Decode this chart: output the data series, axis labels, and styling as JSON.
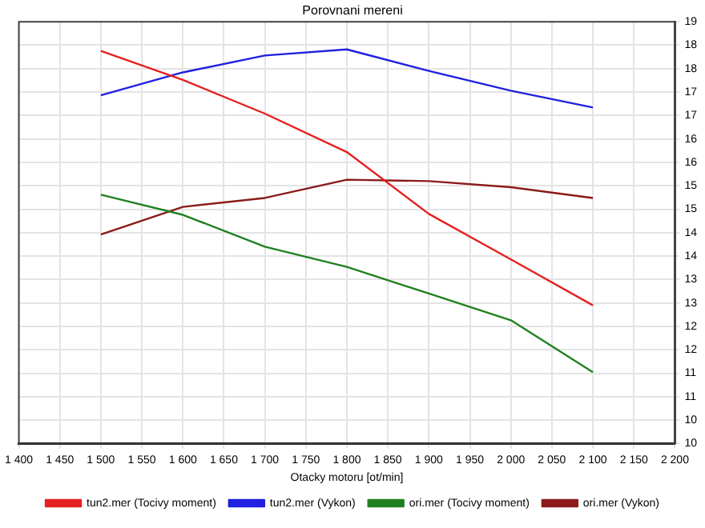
{
  "chart_data": {
    "type": "line",
    "title": "Porovnani mereni",
    "xlabel": "Otacky motoru [ot/min]",
    "x": [
      1500,
      1600,
      1700,
      1800,
      1900,
      2000,
      2100
    ],
    "series": [
      {
        "name": "tun2.mer (Tocivy moment)",
        "color": "#e52020",
        "values": [
          18.38,
          17.76,
          17.04,
          16.22,
          14.9,
          13.93,
          12.95
        ]
      },
      {
        "name": "tun2.mer (Vykon)",
        "color": "#2020e0",
        "values": [
          17.43,
          17.92,
          18.28,
          18.41,
          17.95,
          17.53,
          17.17
        ]
      },
      {
        "name": "ori.mer (Tocivy moment)",
        "color": "#208020",
        "values": [
          15.31,
          14.88,
          14.2,
          13.77,
          13.2,
          12.63,
          11.52
        ]
      },
      {
        "name": "ori.mer (Vykon)",
        "color": "#8b1a1a",
        "values": [
          14.46,
          15.05,
          15.24,
          15.63,
          15.6,
          15.47,
          15.24
        ]
      }
    ],
    "xlim": [
      1400,
      2200
    ],
    "xticks": [
      {
        "value": 1400,
        "label": "1 400"
      },
      {
        "value": 1450,
        "label": "1 450"
      },
      {
        "value": 1500,
        "label": "1 500"
      },
      {
        "value": 1550,
        "label": "1 550"
      },
      {
        "value": 1600,
        "label": "1 600"
      },
      {
        "value": 1650,
        "label": "1 650"
      },
      {
        "value": 1700,
        "label": "1 700"
      },
      {
        "value": 1750,
        "label": "1 750"
      },
      {
        "value": 1800,
        "label": "1 800"
      },
      {
        "value": 1850,
        "label": "1 850"
      },
      {
        "value": 1900,
        "label": "1 900"
      },
      {
        "value": 1950,
        "label": "1 950"
      },
      {
        "value": 2000,
        "label": "2 000"
      },
      {
        "value": 2050,
        "label": "2 050"
      },
      {
        "value": 2100,
        "label": "2 100"
      },
      {
        "value": 2150,
        "label": "2 150"
      },
      {
        "value": 2200,
        "label": "2 200"
      }
    ],
    "ylim": [
      10,
      19
    ],
    "yticks": [
      19,
      {
        "value": 18.5,
        "label": "18"
      },
      18,
      {
        "value": 17.5,
        "label": "17"
      },
      17,
      {
        "value": 16.5,
        "label": "16"
      },
      16,
      {
        "value": 15.5,
        "label": "15"
      },
      15,
      {
        "value": 14.5,
        "label": "14"
      },
      14,
      {
        "value": 13.5,
        "label": "13"
      },
      13,
      {
        "value": 12.5,
        "label": "12"
      },
      12,
      {
        "value": 11.5,
        "label": "11"
      },
      11,
      {
        "value": 10.5,
        "label": "10"
      },
      10
    ],
    "grid": true,
    "legend": "bottom",
    "marker": "none",
    "line_style": "solid"
  }
}
